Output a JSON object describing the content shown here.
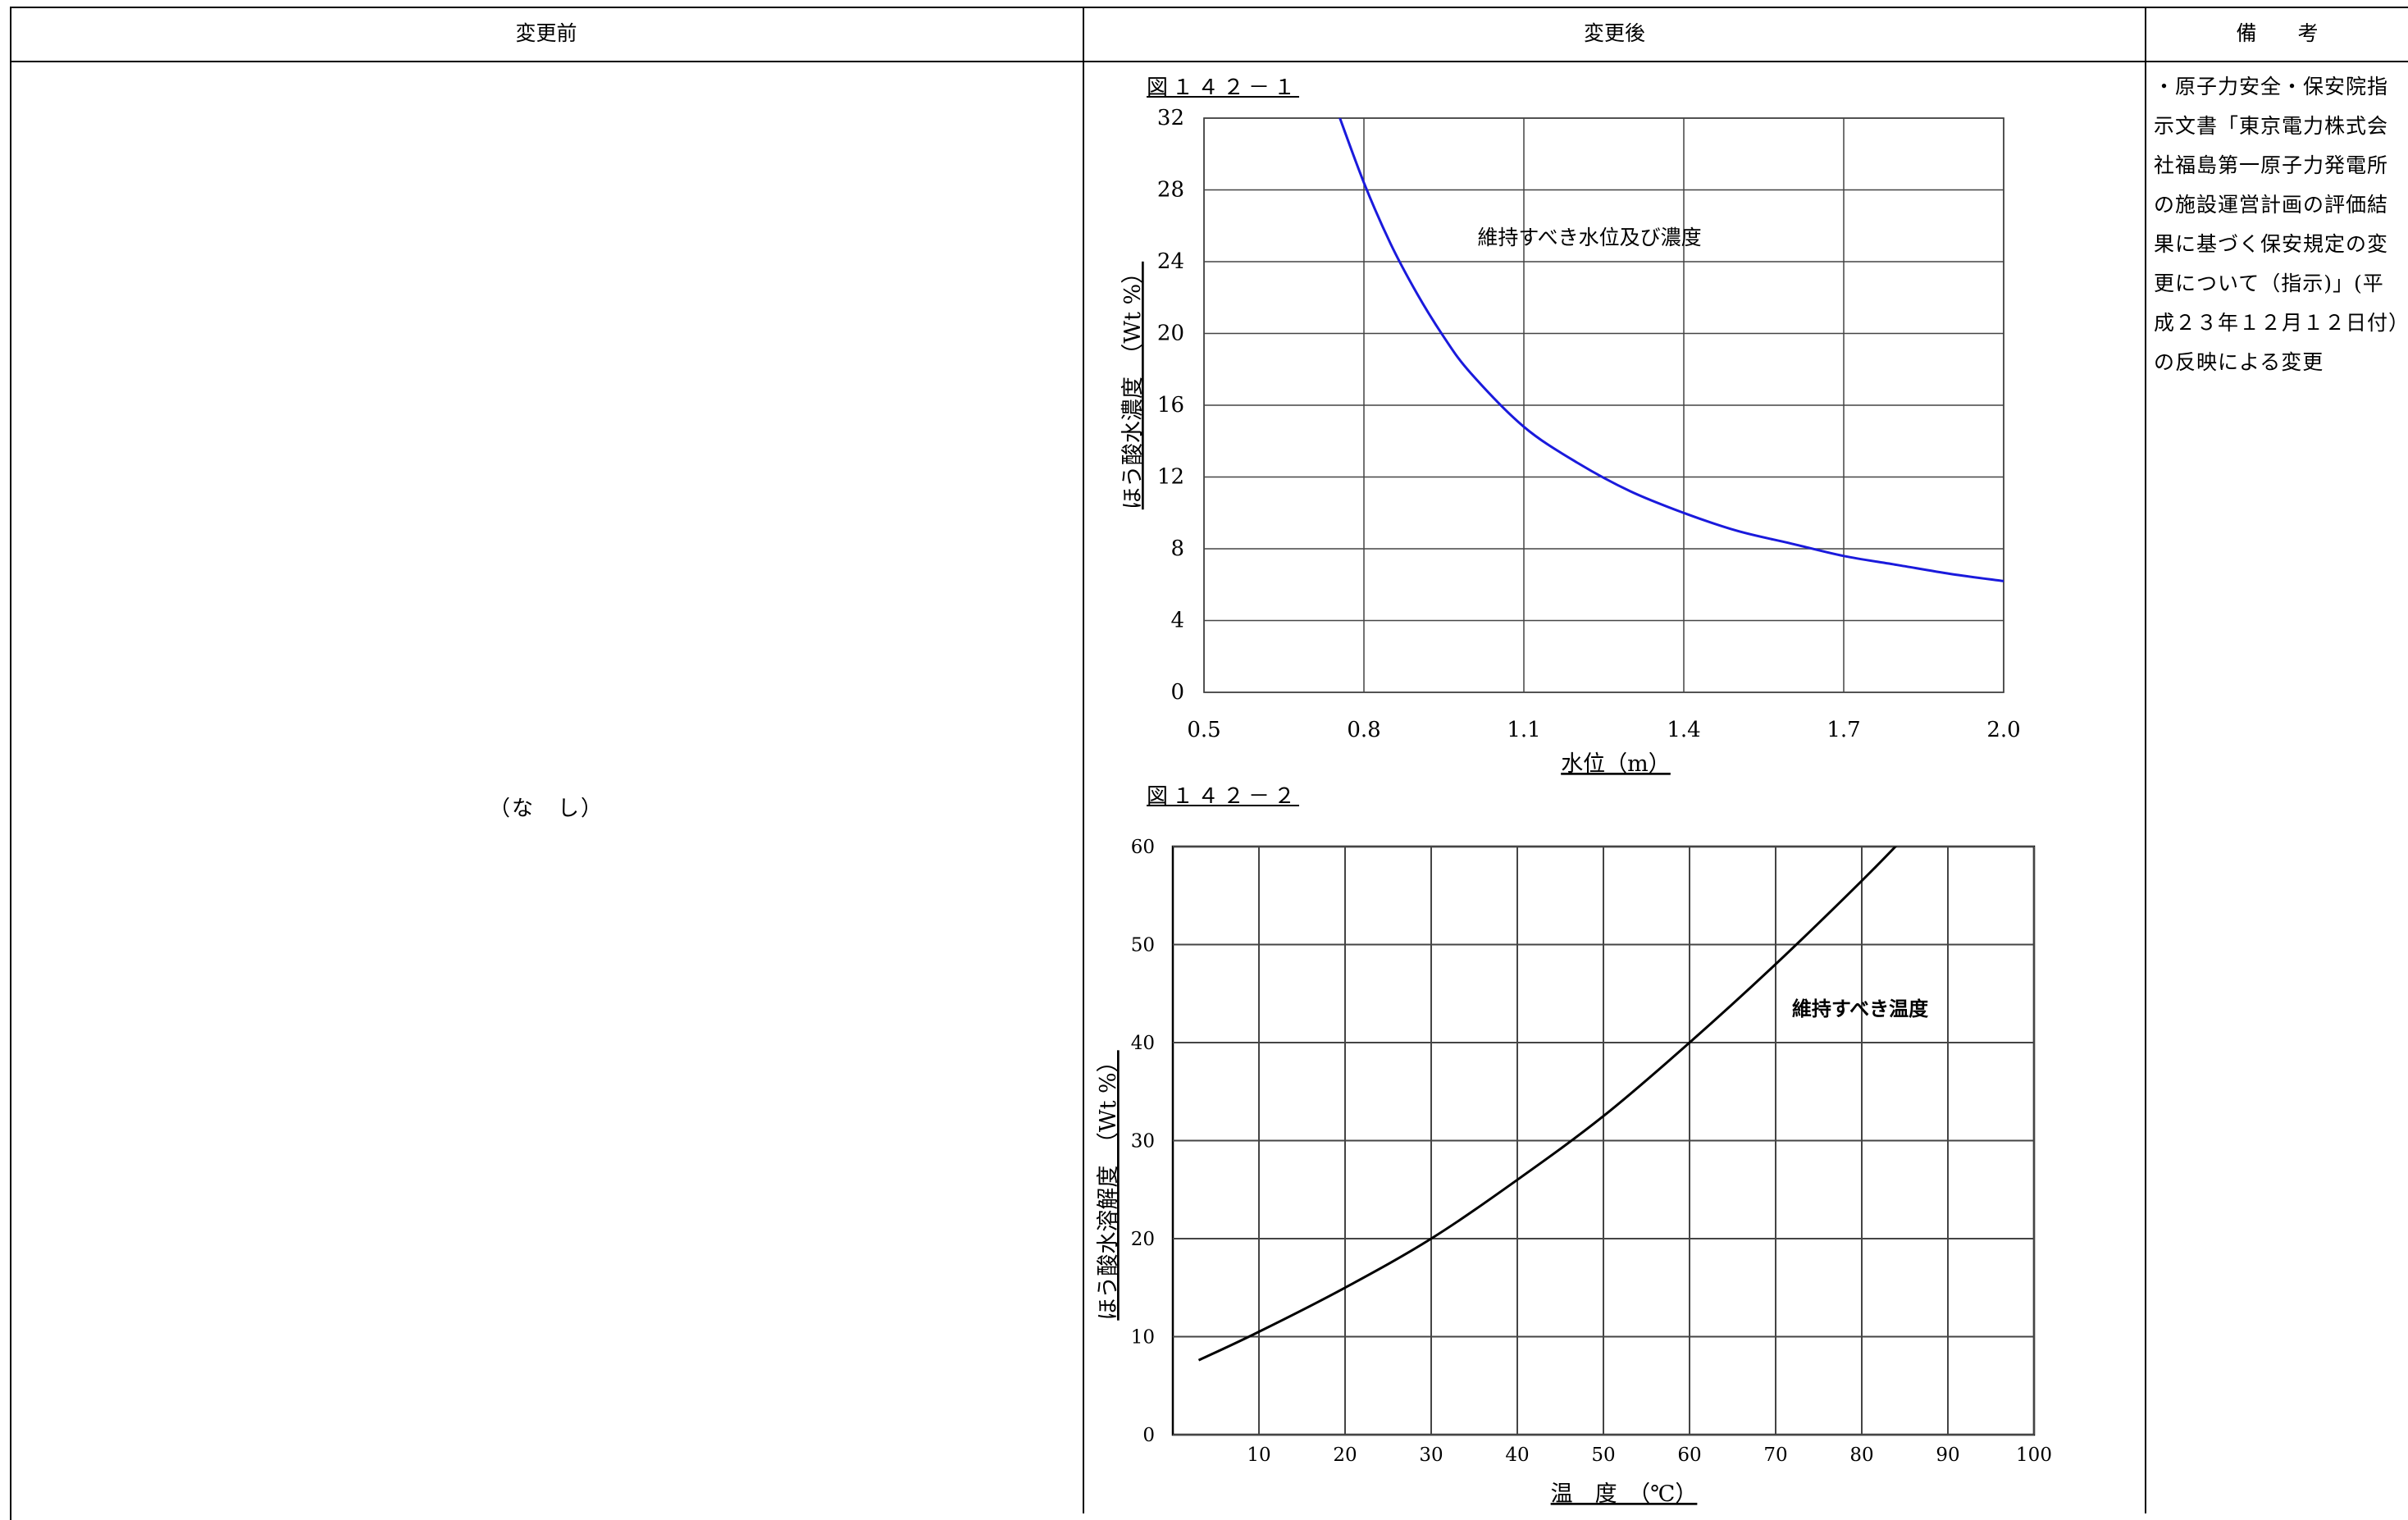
{
  "header": {
    "col_before": "変更前",
    "col_after": "変更後",
    "col_remarks": "備　　考"
  },
  "before": {
    "text": "（な　し）"
  },
  "remarks": {
    "text": "・原子力安全・保安院指示文書「東京電力株式会社福島第一原子力発電所の施設運営計画の評価結果に基づく保安規定の変更について（指示)」(平成２３年１２月１２日付）の反映による変更"
  },
  "figure1": {
    "label": "図１４２－１"
  },
  "figure2": {
    "label": "図１４２－２"
  },
  "chart_data": [
    {
      "type": "line",
      "title": "",
      "xlabel": "水位（m）",
      "ylabel": "ほう酸水濃度　（Wt %）",
      "xlim": [
        0.5,
        2.0
      ],
      "ylim": [
        0,
        32
      ],
      "x_ticks": [
        "0.5",
        "0.8",
        "1.1",
        "1.4",
        "1.7",
        "2.0"
      ],
      "y_ticks": [
        "0",
        "4",
        "8",
        "12",
        "16",
        "20",
        "24",
        "28",
        "32"
      ],
      "grid": true,
      "line_color": "#1a1adc",
      "annotations": [
        "維持すべき水位及び濃度"
      ],
      "series": [
        {
          "x": [
            0.75,
            0.8,
            0.85,
            0.9,
            0.95,
            1.0,
            1.1,
            1.2,
            1.3,
            1.4,
            1.5,
            1.6,
            1.7,
            1.8,
            1.9,
            2.0
          ],
          "y": [
            32.4,
            28.4,
            25.0,
            22.2,
            19.8,
            17.8,
            14.8,
            12.8,
            11.2,
            10.0,
            9.0,
            8.3,
            7.6,
            7.1,
            6.6,
            6.2
          ]
        }
      ]
    },
    {
      "type": "line",
      "title": "",
      "xlabel": "温　度　（℃）",
      "ylabel": "ほう酸水溶解度　（Wt %）",
      "xlim": [
        0,
        100
      ],
      "ylim": [
        0,
        60
      ],
      "x_ticks": [
        "10",
        "20",
        "30",
        "40",
        "50",
        "60",
        "70",
        "80",
        "90",
        "100"
      ],
      "y_ticks": [
        "0",
        "10",
        "20",
        "30",
        "40",
        "50",
        "60"
      ],
      "grid": true,
      "line_color": "#000000",
      "annotations": [
        "維持すべき温度"
      ],
      "series": [
        {
          "x": [
            3,
            10,
            20,
            30,
            40,
            50,
            60,
            70,
            80,
            85
          ],
          "y": [
            7.6,
            10.5,
            15.0,
            20.0,
            26.0,
            32.5,
            40.0,
            48.0,
            56.5,
            61.0
          ]
        }
      ]
    }
  ]
}
